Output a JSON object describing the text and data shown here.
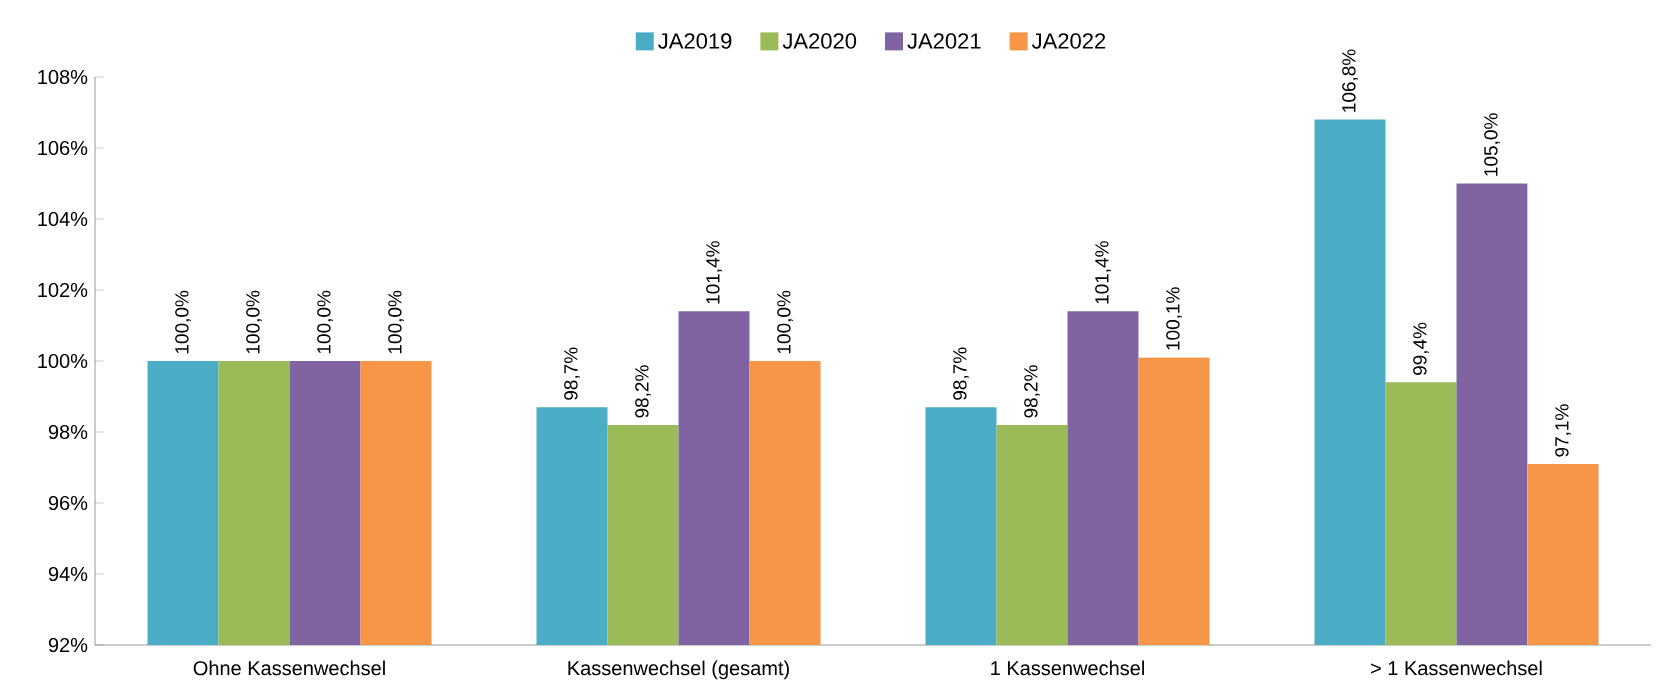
{
  "chart_data": {
    "type": "bar",
    "categories": [
      "Ohne Kassenwechsel",
      "Kassenwechsel (gesamt)",
      "1 Kassenwechsel",
      "> 1 Kassenwechsel"
    ],
    "series": [
      {
        "name": "JA2019",
        "color": "#4bacc6",
        "values": [
          100.0,
          98.7,
          98.7,
          106.8
        ],
        "value_labels": [
          "100,0%",
          "98,7%",
          "98,7%",
          "106,8%"
        ]
      },
      {
        "name": "JA2020",
        "color": "#9bbb59",
        "values": [
          100.0,
          98.2,
          98.2,
          99.4
        ],
        "value_labels": [
          "100,0%",
          "98,2%",
          "98,2%",
          "99,4%"
        ]
      },
      {
        "name": "JA2021",
        "color": "#8064a2",
        "values": [
          100.0,
          101.4,
          101.4,
          105.0
        ],
        "value_labels": [
          "100,0%",
          "101,4%",
          "101,4%",
          "105,0%"
        ]
      },
      {
        "name": "JA2022",
        "color": "#f79646",
        "values": [
          100.0,
          100.0,
          100.1,
          97.1
        ],
        "value_labels": [
          "100,0%",
          "100,0%",
          "100,1%",
          "97,1%"
        ]
      }
    ],
    "ylim": [
      92,
      108
    ],
    "yticks": [
      {
        "value": 92,
        "label": "92%"
      },
      {
        "value": 94,
        "label": "94%"
      },
      {
        "value": 96,
        "label": "96%"
      },
      {
        "value": 98,
        "label": "98%"
      },
      {
        "value": 100,
        "label": "100%"
      },
      {
        "value": 102,
        "label": "102%"
      },
      {
        "value": 104,
        "label": "104%"
      },
      {
        "value": 106,
        "label": "106%"
      },
      {
        "value": 108,
        "label": "108%"
      }
    ],
    "legend": "top",
    "grid": false
  }
}
